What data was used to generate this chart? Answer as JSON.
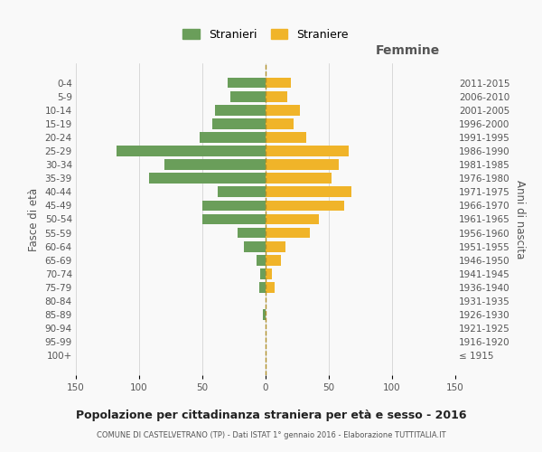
{
  "age_groups": [
    "100+",
    "95-99",
    "90-94",
    "85-89",
    "80-84",
    "75-79",
    "70-74",
    "65-69",
    "60-64",
    "55-59",
    "50-54",
    "45-49",
    "40-44",
    "35-39",
    "30-34",
    "25-29",
    "20-24",
    "15-19",
    "10-14",
    "5-9",
    "0-4"
  ],
  "birth_years": [
    "≤ 1915",
    "1916-1920",
    "1921-1925",
    "1926-1930",
    "1931-1935",
    "1936-1940",
    "1941-1945",
    "1946-1950",
    "1951-1955",
    "1956-1960",
    "1961-1965",
    "1966-1970",
    "1971-1975",
    "1976-1980",
    "1981-1985",
    "1986-1990",
    "1991-1995",
    "1996-2000",
    "2001-2005",
    "2006-2010",
    "2011-2015"
  ],
  "males": [
    0,
    0,
    0,
    2,
    0,
    5,
    4,
    7,
    17,
    22,
    50,
    50,
    38,
    92,
    80,
    118,
    52,
    42,
    40,
    28,
    30
  ],
  "females": [
    0,
    0,
    0,
    0,
    0,
    7,
    5,
    12,
    16,
    35,
    42,
    62,
    68,
    52,
    58,
    66,
    32,
    22,
    27,
    17,
    20
  ],
  "male_color": "#6a9e5a",
  "female_color": "#f0b429",
  "dashed_line_color": "#b0902a",
  "grid_color": "#cccccc",
  "bg_color": "#f9f9f9",
  "title": "Popolazione per cittadinanza straniera per età e sesso - 2016",
  "subtitle": "COMUNE DI CASTELVETRANO (TP) - Dati ISTAT 1° gennaio 2016 - Elaborazione TUTTITALIA.IT",
  "ylabel_left": "Fasce di età",
  "ylabel_right": "Anni di nascita",
  "header_right": "Femmine",
  "legend_male": "Stranieri",
  "legend_female": "Straniere",
  "xlim": 150
}
